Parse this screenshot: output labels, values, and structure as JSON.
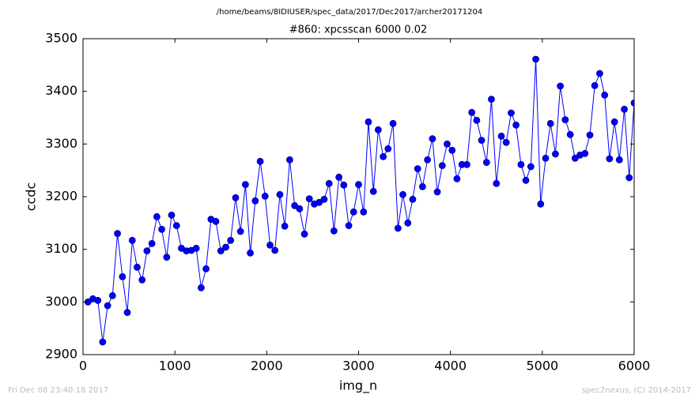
{
  "chart_data": {
    "type": "line",
    "suptitle": "/home/beams/8IDIUSER/spec_data/2017/Dec2017/archer20171204",
    "title": "#860: xpcsscan 6000 0.02",
    "xlabel": "img_n",
    "ylabel": "ccdc",
    "footer_left": "Fri Dec 08 23:40:18 2017",
    "footer_right": "spec2nexus, (C) 2014-2017",
    "xlim": [
      0,
      6000
    ],
    "xticks": [
      0,
      1000,
      2000,
      3000,
      4000,
      5000,
      6000
    ],
    "ylim": [
      2900,
      3500
    ],
    "yticks": [
      2900,
      3000,
      3100,
      3200,
      3300,
      3400,
      3500
    ],
    "grid": false,
    "series": [
      {
        "name": "ccdc",
        "color": "#0000ff",
        "marker": true,
        "x": [
          54,
          107,
          161,
          214,
          268,
          321,
          375,
          429,
          482,
          536,
          589,
          643,
          696,
          750,
          804,
          857,
          911,
          964,
          1018,
          1071,
          1125,
          1179,
          1232,
          1286,
          1339,
          1393,
          1446,
          1500,
          1554,
          1607,
          1661,
          1714,
          1768,
          1821,
          1875,
          1929,
          1982,
          2036,
          2089,
          2143,
          2196,
          2250,
          2304,
          2357,
          2411,
          2464,
          2518,
          2571,
          2625,
          2679,
          2732,
          2786,
          2839,
          2893,
          2946,
          3000,
          3054,
          3107,
          3161,
          3214,
          3268,
          3321,
          3375,
          3429,
          3482,
          3536,
          3589,
          3643,
          3696,
          3750,
          3804,
          3857,
          3911,
          3964,
          4018,
          4071,
          4125,
          4179,
          4232,
          4286,
          4339,
          4393,
          4446,
          4500,
          4554,
          4607,
          4661,
          4714,
          4768,
          4821,
          4875,
          4929,
          4982,
          5036,
          5089,
          5143,
          5196,
          5250,
          5304,
          5357,
          5411,
          5464,
          5518,
          5571,
          5625,
          5679,
          5732,
          5786,
          5839,
          5893,
          5946,
          6000
        ],
        "values": [
          3000,
          3006,
          3003,
          2924,
          2993,
          3012,
          3130,
          3048,
          2980,
          3117,
          3066,
          3042,
          3097,
          3111,
          3162,
          3138,
          3085,
          3165,
          3145,
          3102,
          3097,
          3098,
          3102,
          3027,
          3063,
          3157,
          3153,
          3097,
          3104,
          3117,
          3198,
          3134,
          3223,
          3093,
          3192,
          3267,
          3201,
          3108,
          3098,
          3204,
          3144,
          3270,
          3183,
          3177,
          3129,
          3196,
          3186,
          3189,
          3195,
          3225,
          3135,
          3237,
          3222,
          3145,
          3171,
          3223,
          3171,
          3342,
          3210,
          3327,
          3276,
          3291,
          3339,
          3140,
          3204,
          3150,
          3195,
          3253,
          3219,
          3270,
          3310,
          3209,
          3259,
          3300,
          3288,
          3234,
          3261,
          3261,
          3360,
          3345,
          3307,
          3265,
          3385,
          3225,
          3315,
          3303,
          3359,
          3336,
          3261,
          3231,
          3257,
          3461,
          3186,
          3273,
          3339,
          3281,
          3410,
          3346,
          3318,
          3273,
          3279,
          3282,
          3317,
          3411,
          3434,
          3393,
          3272,
          3342,
          3270,
          3366,
          3236,
          3378
        ]
      }
    ]
  }
}
